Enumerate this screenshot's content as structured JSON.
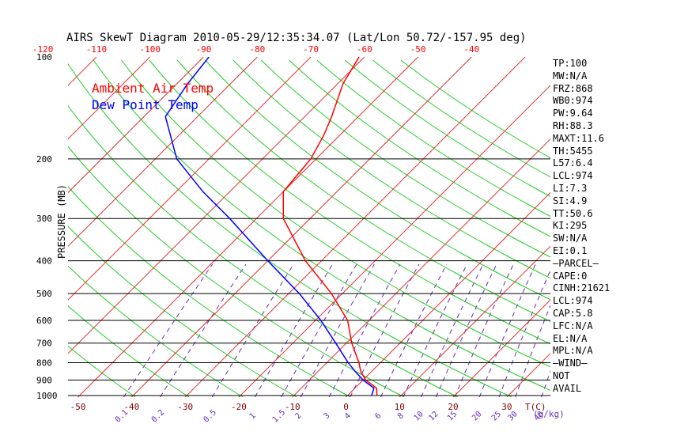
{
  "title": "AIRS SkewT Diagram 2010-05-29/12:35:34.07 (Lat/Lon 50.72/-157.95 deg)",
  "legend": [
    {
      "label": "Ambient Air Temp",
      "color": "#ff0000"
    },
    {
      "label": "Dew Point Temp",
      "color": "#0000ff"
    }
  ],
  "axes": {
    "ylabel": "PRESSURE (MB)",
    "top_ticks": [
      "-120",
      "-110",
      "-100",
      "-90",
      "-80",
      "-70",
      "-60",
      "-50",
      "-40"
    ],
    "bottom_temp_ticks": [
      "-50",
      "-40",
      "-30",
      "-20",
      "-10",
      "0",
      "10",
      "20",
      "30"
    ],
    "bottom_temp_unit": "T(C)",
    "pressure_ticks": [
      "100",
      "200",
      "300",
      "400",
      "500",
      "600",
      "700",
      "800",
      "900",
      "1000"
    ],
    "mixing_ratio_ticks": [
      "0.1",
      "0.2",
      "0.5",
      "1",
      "1.5",
      "2",
      "3",
      "4",
      "6",
      "8",
      "10",
      "12",
      "15",
      "20",
      "25",
      "30",
      "40"
    ],
    "mixing_ratio_unit": "(g/kg)"
  },
  "indices": [
    "TP:100",
    "MW:N/A",
    "FRZ:868",
    "WB0:974",
    "PW:9.64",
    "RH:88.3",
    "MAXT:11.6",
    "TH:5455",
    "L57:6.4",
    "LCL:974",
    "LI:7.3",
    "SI:4.9",
    "TT:50.6",
    "KI:295",
    "SW:N/A",
    "EI:0.1",
    "—PARCEL—",
    "CAPE:0",
    "CINH:21621",
    "LCL:974",
    "CAP:5.8",
    "LFC:N/A",
    "EL:N/A",
    "MPL:N/A",
    "—WIND—",
    "NOT",
    "AVAIL"
  ],
  "chart_data": {
    "type": "line",
    "title": "AIRS SkewT Diagram 2010-05-29/12:35:34.07 (Lat/Lon 50.72/-157.95 deg)",
    "xlabel": "T(C)",
    "ylabel": "PRESSURE (MB)",
    "y_scale": "log",
    "ylim": [
      1000,
      100
    ],
    "grid": true,
    "legend_position": "top-left",
    "series": [
      {
        "name": "Ambient Air Temp",
        "color": "#ff0000",
        "points": [
          [
            1000,
            5.5
          ],
          [
            950,
            4
          ],
          [
            900,
            0.5
          ],
          [
            850,
            -2
          ],
          [
            800,
            -4
          ],
          [
            700,
            -9
          ],
          [
            600,
            -14
          ],
          [
            500,
            -22
          ],
          [
            400,
            -33
          ],
          [
            300,
            -45
          ],
          [
            250,
            -50
          ],
          [
            200,
            -51
          ],
          [
            170,
            -53
          ],
          [
            150,
            -55
          ],
          [
            120,
            -59
          ],
          [
            100,
            -61
          ]
        ]
      },
      {
        "name": "Dew Point Temp",
        "color": "#0000ff",
        "points": [
          [
            1000,
            4.5
          ],
          [
            950,
            3.5
          ],
          [
            900,
            0
          ],
          [
            850,
            -3
          ],
          [
            800,
            -6
          ],
          [
            700,
            -12
          ],
          [
            600,
            -19
          ],
          [
            500,
            -28
          ],
          [
            400,
            -40
          ],
          [
            300,
            -55
          ],
          [
            250,
            -65
          ],
          [
            200,
            -76
          ],
          [
            150,
            -86
          ],
          [
            120,
            -88
          ],
          [
            100,
            -89
          ]
        ]
      }
    ]
  }
}
